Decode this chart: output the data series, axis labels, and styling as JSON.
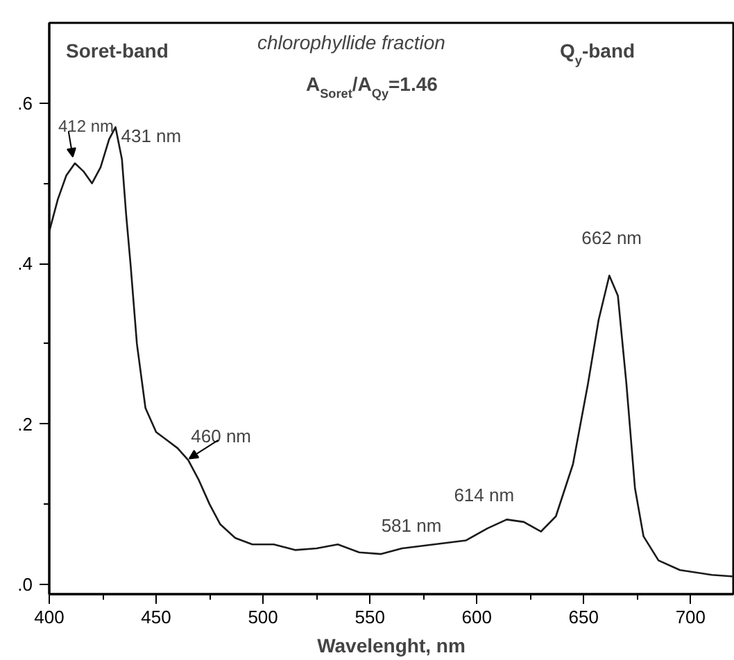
{
  "chart_data": {
    "type": "line",
    "xlabel": "Wavelenght, nm",
    "x": [
      400,
      404,
      408,
      412,
      416,
      420,
      424,
      428,
      431,
      434,
      436,
      438,
      441,
      445,
      450,
      455,
      460,
      465,
      470,
      475,
      480,
      487,
      495,
      505,
      515,
      525,
      535,
      545,
      555,
      565,
      580,
      595,
      605,
      614,
      622,
      630,
      637,
      645,
      652,
      657,
      662,
      666,
      670,
      674,
      678,
      685,
      695,
      710,
      720
    ],
    "series": [
      {
        "color": "#1a1a1a",
        "values": [
          0.44,
          0.48,
          0.51,
          0.525,
          0.515,
          0.5,
          0.52,
          0.555,
          0.57,
          0.53,
          0.46,
          0.4,
          0.3,
          0.22,
          0.19,
          0.18,
          0.17,
          0.155,
          0.13,
          0.1,
          0.075,
          0.058,
          0.05,
          0.05,
          0.043,
          0.045,
          0.05,
          0.04,
          0.038,
          0.045,
          0.05,
          0.055,
          0.07,
          0.081,
          0.078,
          0.066,
          0.085,
          0.15,
          0.25,
          0.33,
          0.385,
          0.36,
          0.25,
          0.12,
          0.06,
          0.03,
          0.018,
          0.012,
          0.01
        ]
      }
    ],
    "xlim": [
      400,
      720
    ],
    "ylim": [
      -0.012,
      0.7
    ],
    "xticks": [
      400,
      450,
      500,
      550,
      600,
      650,
      700
    ],
    "yticks": [
      {
        "value": 0.0,
        "label": ".0"
      },
      {
        "value": 0.2,
        "label": ".2"
      },
      {
        "value": 0.4,
        "label": ".4"
      },
      {
        "value": 0.6,
        "label": ".6"
      }
    ],
    "grid": false,
    "marker": "none",
    "line_style": "solid",
    "annotations": [
      "Soret-band",
      "chlorophyllide fraction",
      "Q$_{y}$-band",
      "A$_{Soret}$/A$_{Qy}$=1.46",
      {
        "text": "412 nm",
        "x": 412,
        "y": 0.525
      },
      {
        "text": "431 nm",
        "x": 431,
        "y": 0.57
      },
      {
        "text": "460 nm",
        "x": 465,
        "y": 0.155
      },
      {
        "text": "581 nm",
        "x": 580,
        "y": 0.05
      },
      {
        "text": "614 nm",
        "x": 614,
        "y": 0.081
      },
      {
        "text": "662 nm",
        "x": 662,
        "y": 0.385
      }
    ]
  }
}
